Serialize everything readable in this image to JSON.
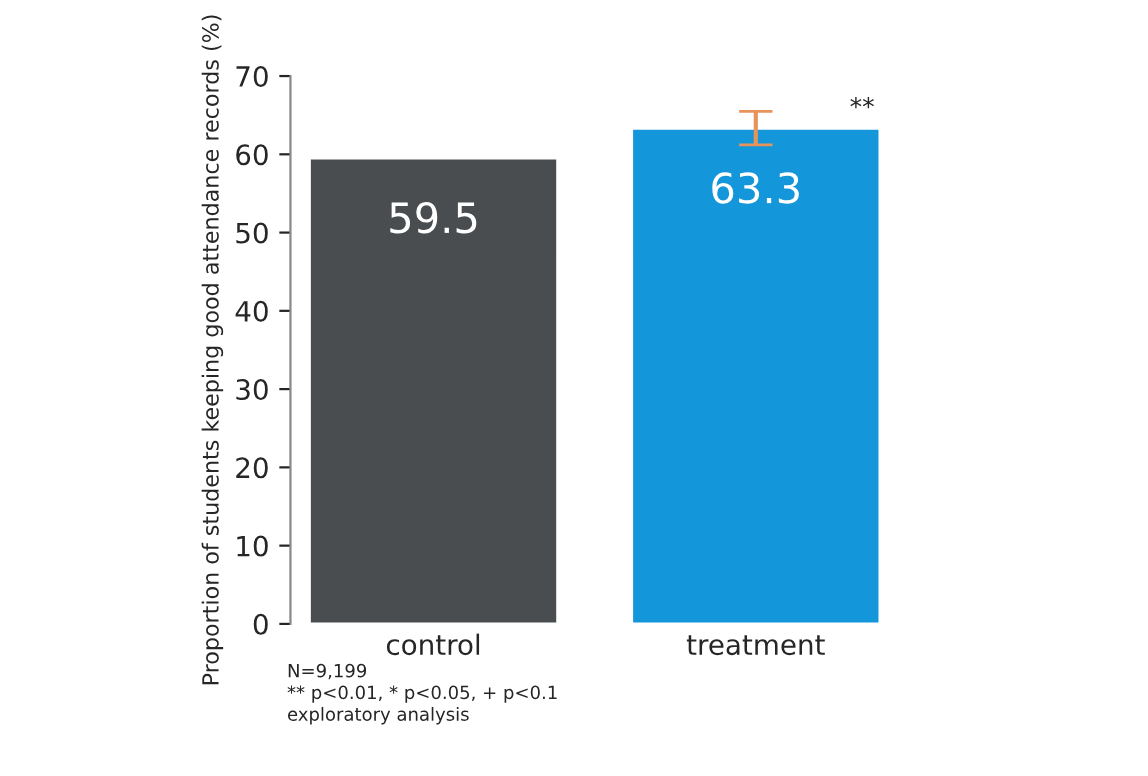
{
  "chart_data": {
    "type": "bar",
    "ylabel": "Proportion of students keeping good attendance records (%)",
    "categories": [
      "control",
      "treatment"
    ],
    "values": [
      59.5,
      63.3
    ],
    "colors": [
      "#4a4d50",
      "#1496da"
    ],
    "errors": [
      null,
      [
        61.2,
        65.5
      ]
    ],
    "ylim": [
      0,
      70
    ],
    "yticks": [
      0,
      10,
      20,
      30,
      40,
      50,
      60,
      70
    ],
    "data_labels": true,
    "grid": false,
    "legend": false,
    "annotations": [
      "**",
      "N=9,199",
      "** p<0.01, * p<0.05, + p<0.1",
      "exploratory analysis"
    ]
  }
}
